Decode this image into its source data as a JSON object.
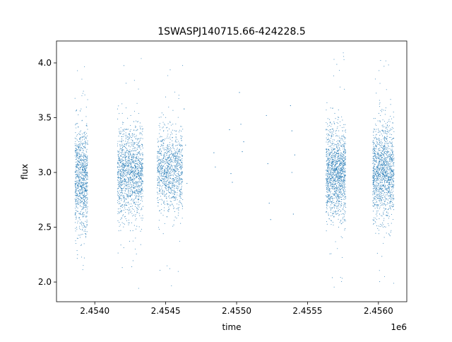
{
  "chart_data": {
    "type": "scatter",
    "title": "1SWASPJ140715.66-424228.5",
    "xlabel": "time",
    "ylabel": "flux",
    "x_offset_label": "1e6",
    "xlim": [
      2.45373,
      2.4562
    ],
    "ylim": [
      1.82,
      4.2
    ],
    "grid": false,
    "x_ticks": [
      {
        "value": 2.454,
        "label": "2.4540"
      },
      {
        "value": 2.4545,
        "label": "2.4545"
      },
      {
        "value": 2.455,
        "label": "2.4550"
      },
      {
        "value": 2.4555,
        "label": "2.4555"
      },
      {
        "value": 2.456,
        "label": "2.4560"
      }
    ],
    "y_ticks": [
      {
        "value": 2.0,
        "label": "2.0"
      },
      {
        "value": 2.5,
        "label": "2.5"
      },
      {
        "value": 3.0,
        "label": "3.0"
      },
      {
        "value": 3.5,
        "label": "3.5"
      },
      {
        "value": 4.0,
        "label": "4.0"
      }
    ],
    "series": [
      {
        "color": "#1f77b4",
        "clusters": [
          {
            "x_range": [
              2.45386,
              2.45395
            ],
            "center": 2.95,
            "spread": 0.23,
            "min": 1.92,
            "max": 4.05,
            "count": 900
          },
          {
            "x_range": [
              2.45416,
              2.45434
            ],
            "center": 3.0,
            "spread": 0.21,
            "min": 1.93,
            "max": 4.07,
            "count": 1300
          },
          {
            "x_range": [
              2.45444,
              2.45462
            ],
            "center": 3.02,
            "spread": 0.19,
            "min": 1.95,
            "max": 4.03,
            "count": 1000
          },
          {
            "x_range": [
              2.45563,
              2.45577
            ],
            "center": 3.0,
            "spread": 0.21,
            "min": 1.94,
            "max": 4.1,
            "count": 1300
          },
          {
            "x_range": [
              2.45596,
              2.45611
            ],
            "center": 3.0,
            "spread": 0.21,
            "min": 1.96,
            "max": 4.1,
            "count": 1300
          }
        ],
        "sparse_points": [
          {
            "x": 2.45463,
            "y": 3.58
          },
          {
            "x": 2.45464,
            "y": 3.25
          },
          {
            "x": 2.45465,
            "y": 2.9
          },
          {
            "x": 2.45484,
            "y": 3.18
          },
          {
            "x": 2.45485,
            "y": 3.05
          },
          {
            "x": 2.45495,
            "y": 3.39
          },
          {
            "x": 2.45496,
            "y": 2.99
          },
          {
            "x": 2.45497,
            "y": 2.91
          },
          {
            "x": 2.45502,
            "y": 3.73
          },
          {
            "x": 2.45503,
            "y": 3.44
          },
          {
            "x": 2.45504,
            "y": 3.19
          },
          {
            "x": 2.45505,
            "y": 3.28
          },
          {
            "x": 2.45521,
            "y": 3.52
          },
          {
            "x": 2.45522,
            "y": 3.08
          },
          {
            "x": 2.45523,
            "y": 2.72
          },
          {
            "x": 2.45524,
            "y": 2.57
          },
          {
            "x": 2.45538,
            "y": 3.61
          },
          {
            "x": 2.45539,
            "y": 3.38
          },
          {
            "x": 2.45539,
            "y": 3.0
          },
          {
            "x": 2.4554,
            "y": 2.62
          },
          {
            "x": 2.45541,
            "y": 3.16
          }
        ]
      }
    ]
  }
}
